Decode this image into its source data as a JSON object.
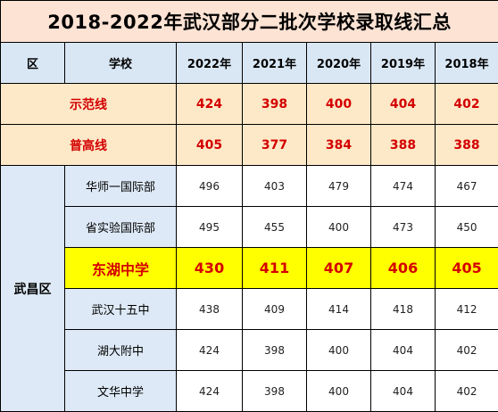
{
  "title": "2018-2022年武汉部分二批次学校录取线汇总",
  "header": {
    "district": "区",
    "school": "学校",
    "years": [
      "2022年",
      "2021年",
      "2020年",
      "2019年",
      "2018年"
    ]
  },
  "lines": [
    {
      "name": "示范线",
      "values": [
        "424",
        "398",
        "400",
        "404",
        "402"
      ]
    },
    {
      "name": "普高线",
      "values": [
        "405",
        "377",
        "384",
        "388",
        "388"
      ]
    }
  ],
  "district_name": "武昌区",
  "schools": [
    {
      "name": "华师一国际部",
      "values": [
        "496",
        "403",
        "479",
        "474",
        "467"
      ]
    },
    {
      "name": "省实验国际部",
      "values": [
        "495",
        "455",
        "400",
        "473",
        "450"
      ]
    },
    {
      "name": "东湖中学",
      "values": [
        "430",
        "411",
        "407",
        "406",
        "405"
      ]
    },
    {
      "name": "武汉十五中",
      "values": [
        "438",
        "409",
        "414",
        "418",
        "412"
      ]
    },
    {
      "name": "湖大附中",
      "values": [
        "424",
        "398",
        "400",
        "404",
        "402"
      ]
    },
    {
      "name": "文华中学",
      "values": [
        "424",
        "398",
        "400",
        "404",
        "402"
      ]
    }
  ],
  "highlight_school": "东湖中学",
  "colors": {
    "title_bg": "#fde3d4",
    "header_bg": "#d9e7f5",
    "line_bg": "#fde9c8",
    "highlight_bg": "#ffff00",
    "accent_red": "#d40000"
  }
}
